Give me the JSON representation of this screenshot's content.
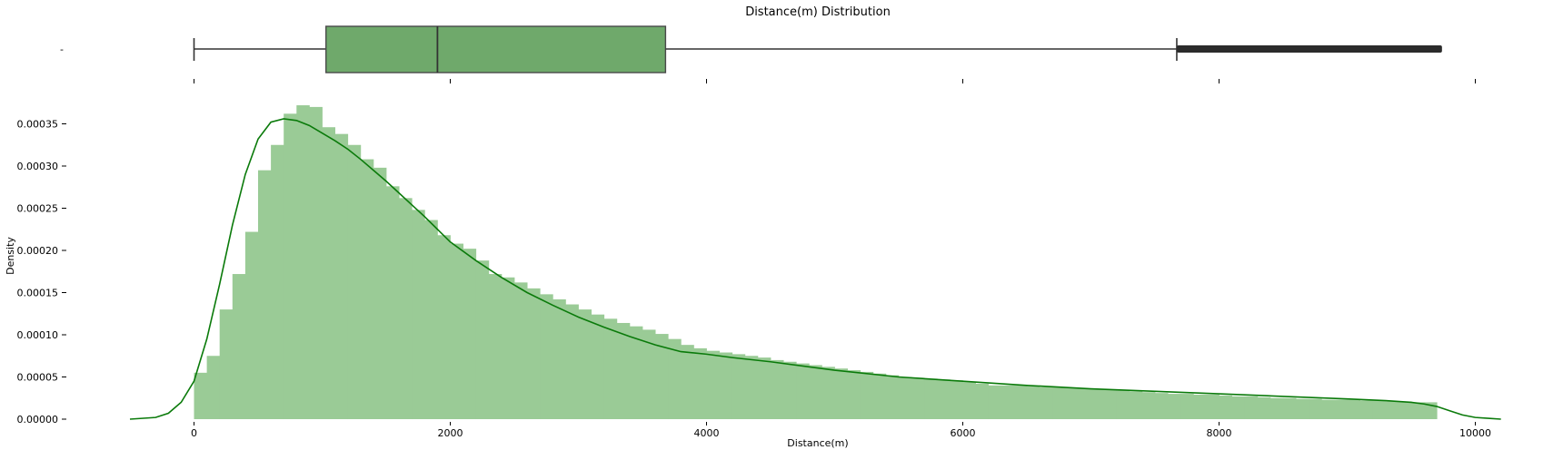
{
  "chart_data": [
    {
      "type": "box",
      "title": "Distance(m) Distribution",
      "ylabel_tick": "-",
      "xlim": [
        -500,
        10200
      ],
      "whisker_low": 0,
      "q1": 1030,
      "median": 1900,
      "q3": 3680,
      "whisker_high": 7670,
      "outliers_range": [
        7670,
        9740
      ],
      "x_ticks": [
        0,
        2000,
        4000,
        6000,
        8000,
        10000
      ],
      "box_color": "#6fa96b",
      "line_color": "#333333"
    },
    {
      "type": "histogram",
      "xlabel": "Distance(m)",
      "ylabel": "Density",
      "xlim": [
        -500,
        10200
      ],
      "ylim": [
        0,
        0.00038
      ],
      "x_ticks": [
        0,
        2000,
        4000,
        6000,
        8000,
        10000
      ],
      "x_tick_labels": [
        "0",
        "2000",
        "4000",
        "6000",
        "8000",
        "10000"
      ],
      "y_ticks": [
        0,
        5e-05,
        0.0001,
        0.00015,
        0.0002,
        0.00025,
        0.0003,
        0.00035
      ],
      "y_tick_labels": [
        "0.00000",
        "0.00005",
        "0.00010",
        "0.00015",
        "0.00020",
        "0.00025",
        "0.00030",
        "0.00035"
      ],
      "bin_start": 0,
      "bin_width": 100,
      "densities": [
        5.5e-05,
        7.5e-05,
        0.00013,
        0.000172,
        0.000222,
        0.000295,
        0.000325,
        0.000362,
        0.000372,
        0.00037,
        0.000346,
        0.000338,
        0.000325,
        0.000308,
        0.000298,
        0.000276,
        0.000262,
        0.000248,
        0.000236,
        0.000218,
        0.000208,
        0.000202,
        0.000188,
        0.000172,
        0.000168,
        0.000162,
        0.000155,
        0.000148,
        0.000142,
        0.000136,
        0.00013,
        0.000124,
        0.000119,
        0.000114,
        0.00011,
        0.000106,
        0.000101,
        9.5e-05,
        8.8e-05,
        8.4e-05,
        8.1e-05,
        7.9e-05,
        7.7e-05,
        7.5e-05,
        7.3e-05,
        7e-05,
        6.8e-05,
        6.6e-05,
        6.4e-05,
        6.2e-05,
        6e-05,
        5.8e-05,
        5.6e-05,
        5.4e-05,
        5.2e-05,
        5e-05,
        4.9e-05,
        4.8e-05,
        4.7e-05,
        4.6e-05,
        4.4e-05,
        4.2e-05,
        4e-05,
        4e-05,
        4e-05,
        3.9e-05,
        3.8e-05,
        3.8e-05,
        3.7e-05,
        3.6e-05,
        3.6e-05,
        3.5e-05,
        3.4e-05,
        3.3e-05,
        3.2e-05,
        3.1e-05,
        3e-05,
        3e-05,
        2.9e-05,
        2.9e-05,
        2.8e-05,
        2.7e-05,
        2.7e-05,
        2.6e-05,
        2.5e-05,
        2.5e-05,
        2.4e-05,
        2.4e-05,
        2.3e-05,
        2.3e-05,
        2.3e-05,
        2.2e-05,
        2.2e-05,
        2.1e-05,
        2.1e-05,
        2e-05,
        2e-05
      ],
      "kde": {
        "x": [
          -500,
          -300,
          -200,
          -100,
          0,
          100,
          200,
          300,
          400,
          500,
          600,
          700,
          800,
          900,
          1000,
          1100,
          1200,
          1300,
          1400,
          1500,
          1600,
          1700,
          1800,
          1900,
          2000,
          2200,
          2400,
          2600,
          2800,
          3000,
          3200,
          3400,
          3600,
          3800,
          4000,
          4200,
          4500,
          5000,
          5500,
          6000,
          6500,
          7000,
          7500,
          8000,
          8500,
          9000,
          9300,
          9500,
          9600,
          9700,
          9800,
          9900,
          10000,
          10100,
          10200
        ],
        "y": [
          0,
          2e-06,
          7e-06,
          2e-05,
          4.5e-05,
          9.5e-05,
          0.00016,
          0.00023,
          0.00029,
          0.000332,
          0.000352,
          0.000356,
          0.000354,
          0.000348,
          0.000339,
          0.00033,
          0.00032,
          0.000308,
          0.000295,
          0.000282,
          0.000268,
          0.000254,
          0.00024,
          0.000225,
          0.00021,
          0.000188,
          0.000168,
          0.00015,
          0.000135,
          0.000121,
          0.000109,
          9.8e-05,
          8.8e-05,
          8e-05,
          7.7e-05,
          7.3e-05,
          6.8e-05,
          5.8e-05,
          5e-05,
          4.5e-05,
          4e-05,
          3.6e-05,
          3.3e-05,
          3e-05,
          2.7e-05,
          2.4e-05,
          2.2e-05,
          2e-05,
          1.8e-05,
          1.5e-05,
          1e-05,
          5e-06,
          2e-06,
          1e-06,
          0
        ]
      },
      "bar_color": "#9acb96",
      "kde_color": "#0a7a0a"
    }
  ]
}
